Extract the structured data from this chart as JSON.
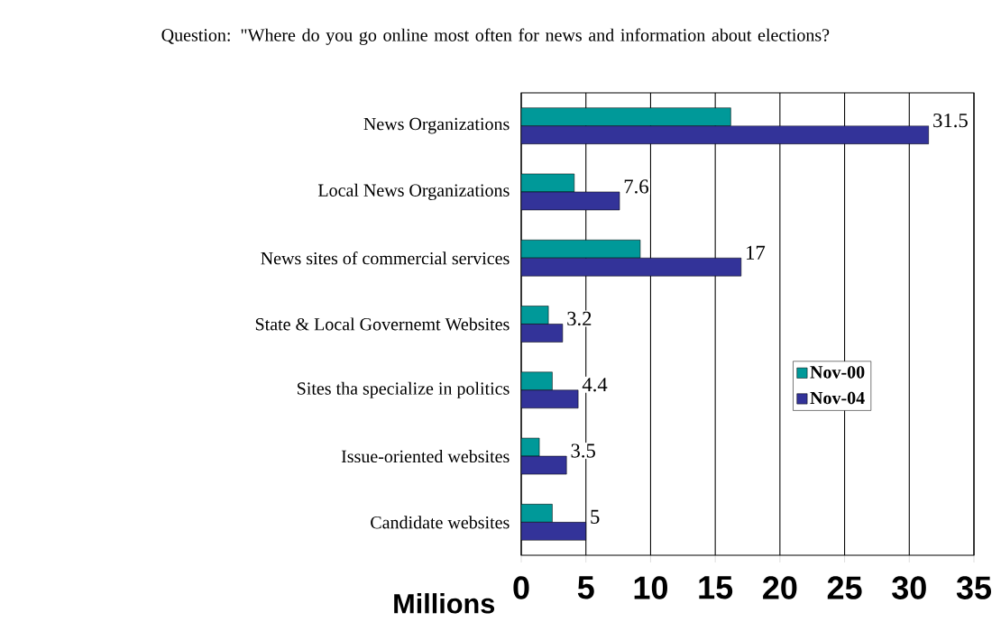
{
  "chart_data": {
    "type": "bar",
    "orientation": "horizontal",
    "title": "Question: \"Where do you go online most often for news and information about elections?",
    "xlabel": "Millions",
    "categories": [
      "News Organizations",
      "Local News Organizations",
      "News sites of commercial services",
      "State & Local Governemt Websites",
      "Sites tha specialize in politics",
      "Issue-oriented websites",
      "Candidate websites"
    ],
    "series": [
      {
        "name": "Nov-00",
        "color": "#009999",
        "values": [
          16.2,
          4.1,
          9.2,
          2.1,
          2.4,
          1.4,
          2.4
        ]
      },
      {
        "name": "Nov-04",
        "color": "#333399",
        "values": [
          31.5,
          7.6,
          17,
          3.2,
          4.4,
          3.5,
          5
        ],
        "value_labels": [
          "31.5",
          "7.6",
          "17",
          "3.2",
          "4.4",
          "3.5",
          "5"
        ]
      }
    ],
    "xlim": [
      0,
      35
    ],
    "xticks": [
      0,
      5,
      10,
      15,
      20,
      25,
      30,
      35
    ],
    "grid": "x",
    "legend": "right"
  }
}
